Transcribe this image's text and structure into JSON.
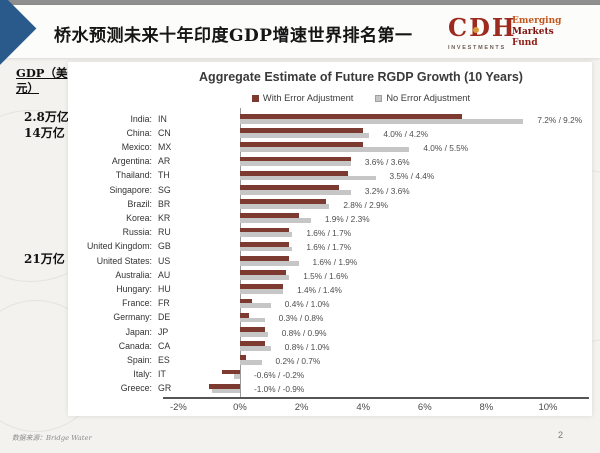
{
  "header": {
    "title": "桥水预测未来十年印度GDP增速世界排名第一",
    "logo": {
      "brand": "CDH",
      "sub": "INVESTMENTS",
      "line1": "Emerging",
      "line2": "Markets",
      "line3": "Fund"
    }
  },
  "annotations": {
    "gdp_label": "GDP（美元）",
    "india_gdp": "2.8万亿",
    "china_gdp": "14万亿",
    "us_gdp": "21万亿"
  },
  "chart_data": {
    "type": "bar",
    "orientation": "horizontal",
    "title": "Aggregate Estimate of Future RGDP Growth (10 Years)",
    "legend": [
      "With Error Adjustment",
      "No Error Adjustment"
    ],
    "legend_position": "top",
    "colors": {
      "with_error": "#7d3a30",
      "no_error": "#c6c6c6"
    },
    "xlim": [
      -2,
      10
    ],
    "x_ticks": [
      "-2%",
      "0%",
      "2%",
      "4%",
      "6%",
      "8%",
      "10%"
    ],
    "grid": false,
    "countries": [
      {
        "name": "India",
        "code": "IN",
        "with_error": 7.2,
        "no_error": 9.2,
        "label": "7.2% / 9.2%"
      },
      {
        "name": "China",
        "code": "CN",
        "with_error": 4.0,
        "no_error": 4.2,
        "label": "4.0% / 4.2%"
      },
      {
        "name": "Mexico",
        "code": "MX",
        "with_error": 4.0,
        "no_error": 5.5,
        "label": "4.0% / 5.5%"
      },
      {
        "name": "Argentina",
        "code": "AR",
        "with_error": 3.6,
        "no_error": 3.6,
        "label": "3.6% / 3.6%"
      },
      {
        "name": "Thailand",
        "code": "TH",
        "with_error": 3.5,
        "no_error": 4.4,
        "label": "3.5% / 4.4%"
      },
      {
        "name": "Singapore",
        "code": "SG",
        "with_error": 3.2,
        "no_error": 3.6,
        "label": "3.2% / 3.6%"
      },
      {
        "name": "Brazil",
        "code": "BR",
        "with_error": 2.8,
        "no_error": 2.9,
        "label": "2.8% / 2.9%"
      },
      {
        "name": "Korea",
        "code": "KR",
        "with_error": 1.9,
        "no_error": 2.3,
        "label": "1.9% / 2.3%"
      },
      {
        "name": "Russia",
        "code": "RU",
        "with_error": 1.6,
        "no_error": 1.7,
        "label": "1.6% / 1.7%"
      },
      {
        "name": "United Kingdom",
        "code": "GB",
        "with_error": 1.6,
        "no_error": 1.7,
        "label": "1.6% / 1.7%"
      },
      {
        "name": "United States",
        "code": "US",
        "with_error": 1.6,
        "no_error": 1.9,
        "label": "1.6% / 1.9%"
      },
      {
        "name": "Australia",
        "code": "AU",
        "with_error": 1.5,
        "no_error": 1.6,
        "label": "1.5% / 1.6%"
      },
      {
        "name": "Hungary",
        "code": "HU",
        "with_error": 1.4,
        "no_error": 1.4,
        "label": "1.4% / 1.4%"
      },
      {
        "name": "France",
        "code": "FR",
        "with_error": 0.4,
        "no_error": 1.0,
        "label": "0.4% / 1.0%"
      },
      {
        "name": "Germany",
        "code": "DE",
        "with_error": 0.3,
        "no_error": 0.8,
        "label": "0.3% / 0.8%"
      },
      {
        "name": "Japan",
        "code": "JP",
        "with_error": 0.8,
        "no_error": 0.9,
        "label": "0.8% / 0.9%"
      },
      {
        "name": "Canada",
        "code": "CA",
        "with_error": 0.8,
        "no_error": 1.0,
        "label": "0.8% / 1.0%"
      },
      {
        "name": "Spain",
        "code": "ES",
        "with_error": 0.2,
        "no_error": 0.7,
        "label": "0.2% / 0.7%"
      },
      {
        "name": "Italy",
        "code": "IT",
        "with_error": -0.6,
        "no_error": -0.2,
        "label": "-0.6% / -0.2%"
      },
      {
        "name": "Greece",
        "code": "GR",
        "with_error": -1.0,
        "no_error": -0.9,
        "label": "-1.0% / -0.9%"
      }
    ]
  },
  "footer": {
    "source": "数据来源：Bridge Water",
    "page": "2"
  }
}
